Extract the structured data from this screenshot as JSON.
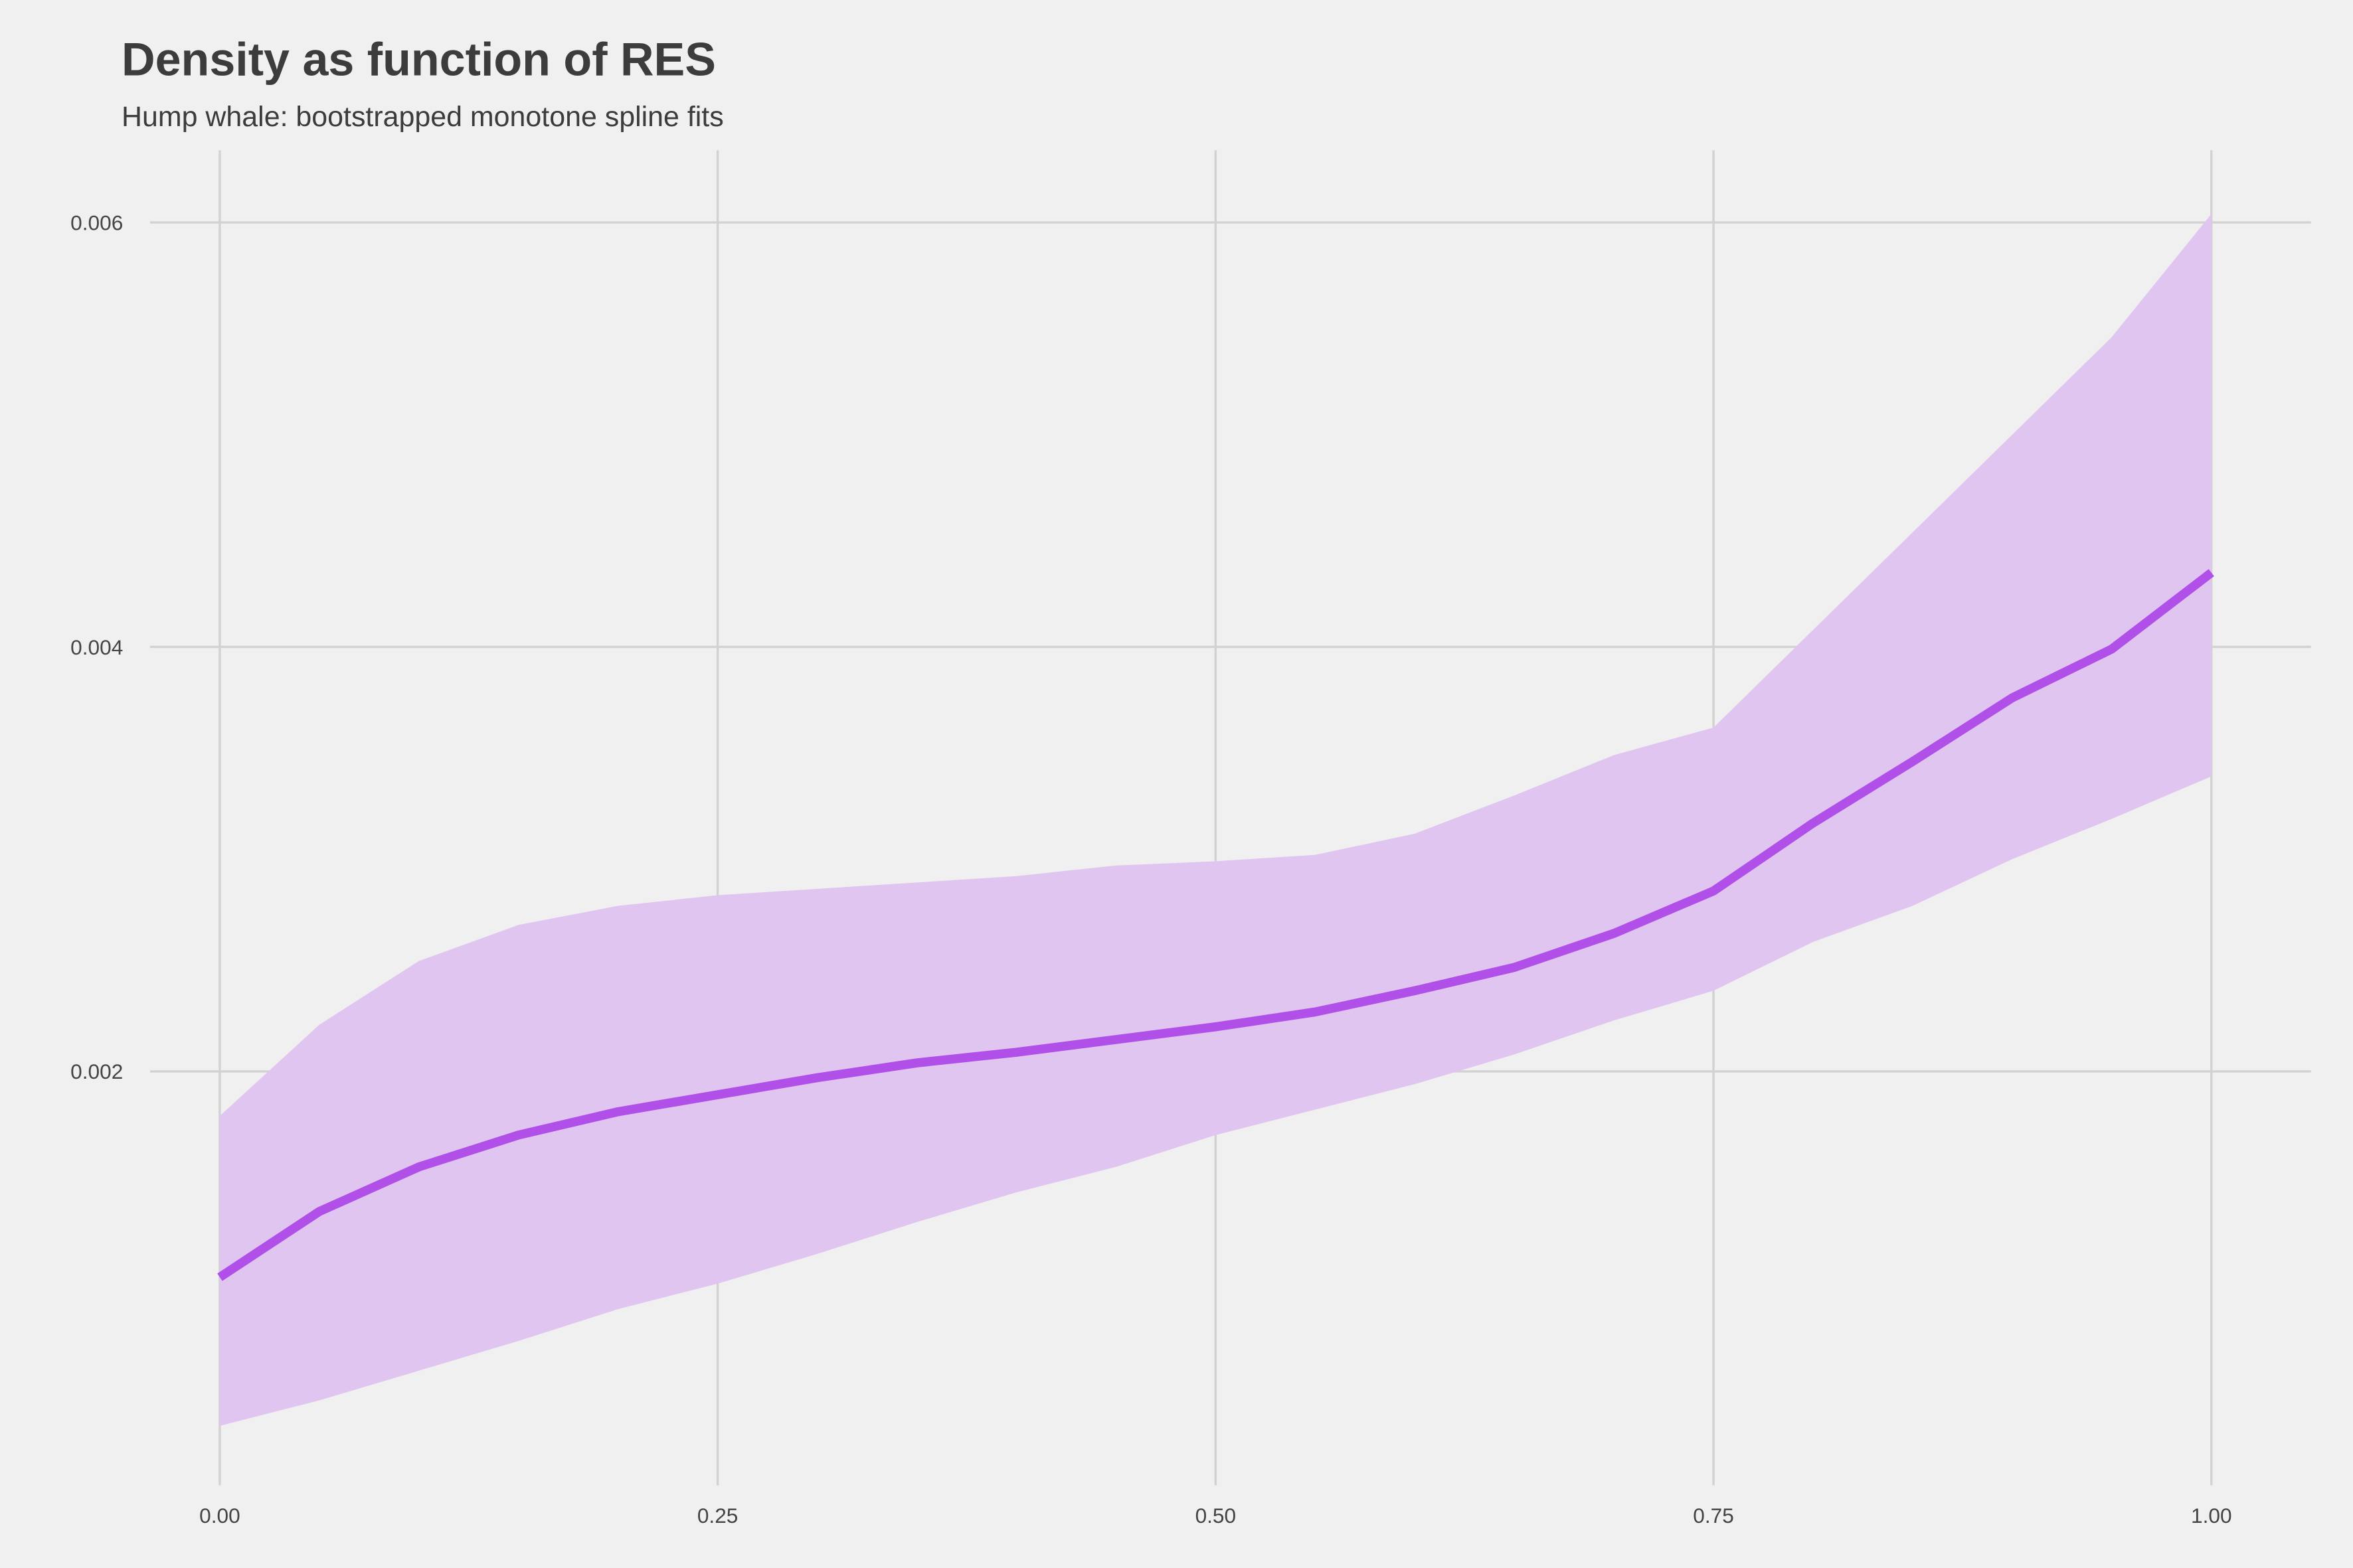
{
  "chart_data": {
    "type": "line-band",
    "title": "Density as function of RES",
    "subtitle": "Hump whale: bootstrapped monotone spline fits",
    "x": [
      0,
      0.05,
      0.1,
      0.15,
      0.2,
      0.25,
      0.3,
      0.35,
      0.4,
      0.45,
      0.5,
      0.55,
      0.6,
      0.65,
      0.7,
      0.75,
      0.8,
      0.85,
      0.9,
      0.95,
      1
    ],
    "line": {
      "color": "#b150e8",
      "values": [
        0.00103,
        0.00134,
        0.00155,
        0.0017,
        0.00181,
        0.00189,
        0.00197,
        0.00204,
        0.00209,
        0.00215,
        0.00221,
        0.00228,
        0.00238,
        0.00249,
        0.00265,
        0.00285,
        0.00317,
        0.00346,
        0.00376,
        0.00399,
        0.00435
      ]
    },
    "band": {
      "color": "#e0c5f0",
      "lower": [
        0.00033,
        0.00045,
        0.00059,
        0.00073,
        0.00088,
        0.001,
        0.00114,
        0.00129,
        0.00143,
        0.00155,
        0.0017,
        0.00182,
        0.00194,
        0.00208,
        0.00224,
        0.00238,
        0.00261,
        0.00278,
        0.003,
        0.00319,
        0.00339
      ],
      "upper": [
        0.00179,
        0.00222,
        0.00252,
        0.00269,
        0.00278,
        0.00283,
        0.00286,
        0.00289,
        0.00292,
        0.00297,
        0.00299,
        0.00302,
        0.00312,
        0.0033,
        0.00349,
        0.00362,
        0.00408,
        0.00454,
        0.005,
        0.00546,
        0.00604
      ]
    },
    "xlim": [
      -0.035,
      1.05
    ],
    "ylim": [
      5e-05,
      0.00634
    ],
    "xticks": [
      {
        "value": 0,
        "label": "0.00"
      },
      {
        "value": 0.25,
        "label": "0.25"
      },
      {
        "value": 0.5,
        "label": "0.50"
      },
      {
        "value": 0.75,
        "label": "0.75"
      },
      {
        "value": 1,
        "label": "1.00"
      }
    ],
    "yticks": [
      0.002,
      0.004,
      0.006
    ],
    "grid": true
  }
}
